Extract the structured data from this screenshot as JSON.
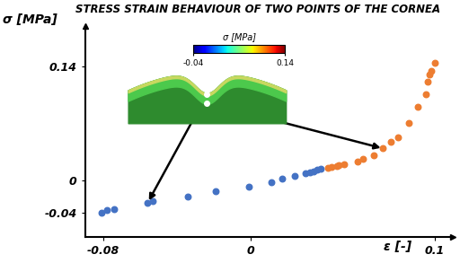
{
  "chart_data": {
    "type": "scatter",
    "title": "STRESS STRAIN BEHAVIOUR OF TWO POINTS OF THE CORNEA",
    "x_label": "ε [-]",
    "y_label": "σ [MPa]",
    "xlim": [
      -0.09,
      0.11
    ],
    "ylim": [
      -0.07,
      0.19
    ],
    "xticks": [
      -0.08,
      0,
      0.1
    ],
    "yticks": [
      -0.04,
      0,
      0.14
    ],
    "grid": false,
    "series": [
      {
        "color": "#4472c4",
        "marker": "circle",
        "x": [
          -0.081,
          -0.078,
          -0.074,
          -0.056,
          -0.053,
          -0.034,
          -0.019,
          -0.001,
          0.011,
          0.017,
          0.024,
          0.03,
          0.032,
          0.034,
          0.036,
          0.038
        ],
        "values": [
          -0.04,
          -0.037,
          -0.036,
          -0.028,
          -0.026,
          -0.02,
          -0.014,
          -0.008,
          -0.003,
          0.002,
          0.005,
          0.008,
          0.01,
          0.011,
          0.013,
          0.014
        ]
      },
      {
        "color": "#ed7d31",
        "marker": "circle",
        "x": [
          0.042,
          0.044,
          0.047,
          0.048,
          0.051,
          0.058,
          0.061,
          0.067,
          0.072,
          0.076,
          0.08,
          0.086,
          0.091,
          0.095,
          0.096,
          0.097,
          0.098,
          0.1
        ],
        "values": [
          0.015,
          0.016,
          0.017,
          0.018,
          0.019,
          0.023,
          0.026,
          0.031,
          0.039,
          0.047,
          0.053,
          0.07,
          0.091,
          0.106,
          0.122,
          0.13,
          0.135,
          0.145
        ]
      }
    ],
    "colorbar": {
      "label": "σ [MPa]",
      "range": [
        -0.04,
        0.14
      ],
      "ticks": [
        -0.04,
        0.14
      ]
    }
  }
}
